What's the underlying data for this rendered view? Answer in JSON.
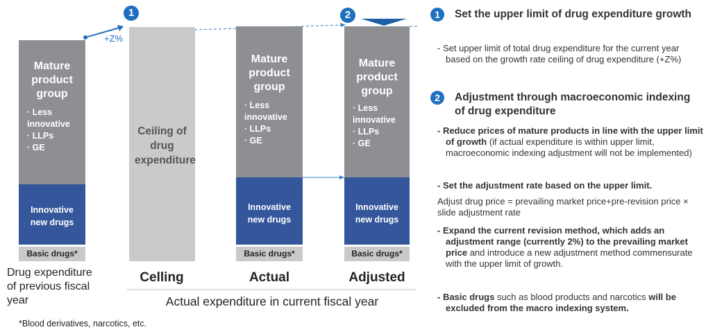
{
  "steps": {
    "one": "1",
    "two": "2"
  },
  "growth_label": "+Z%",
  "bars": {
    "previous": {
      "group_title": "Mature product group",
      "items": [
        "· Less innovative",
        "· LLPs",
        "· GE"
      ],
      "innovative": "Innovative new drugs",
      "basic": "Basic drugs*"
    },
    "ceiling": {
      "text": "Ceiling of drug expenditure"
    },
    "actual": {
      "group_title": "Mature product group",
      "items": [
        "· Less innovative",
        "· LLPs",
        "· GE"
      ],
      "innovative": "Innovative new drugs",
      "basic": "Basic drugs*"
    },
    "adjusted": {
      "group_title": "Mature product group",
      "items": [
        "· Less innovative",
        "· LLPs",
        "· GE"
      ],
      "innovative": "Innovative new drugs",
      "basic": "Basic drugs*"
    }
  },
  "labels": {
    "previous": [
      "Drug expenditure",
      "of previous fiscal",
      "year"
    ],
    "ceiling": "Celling",
    "actual": "Actual",
    "adjusted": "Adjusted",
    "current_year": "Actual expenditure in current fiscal year"
  },
  "footnote": "*Blood derivatives, narcotics, etc.",
  "right_panel": {
    "s1_title": "Set the upper limit of drug expenditure growth",
    "s1_text": "- Set upper limit of total drug expenditure for the current year based on the growth rate ceiling of drug expenditure (+Z%)",
    "s2_title": "Adjustment through macroeconomic indexing of drug expenditure",
    "b1_bold": "- Reduce prices of mature products in line with the upper limit of growth",
    "b1_rest": " (if actual expenditure is within upper limit, macroeconomic indexing adjustment will not be implemented)",
    "b2_bold": "- Set the adjustment rate based on the upper limit.",
    "formula": "Adjust drug price = prevailing market price+pre-revision price × slide adjustment rate",
    "b3_bold": "- Expand the current revision method, which adds an adjustment range (currently 2%) to the prevailing market price",
    "b3_rest": " and introduce a new adjustment method commensurate with the upper limit of growth.",
    "b4_bold1": "- Basic drugs",
    "b4_mid": " such as blood products and narcotics ",
    "b4_bold2": "will be excluded from the macro indexing system."
  }
}
